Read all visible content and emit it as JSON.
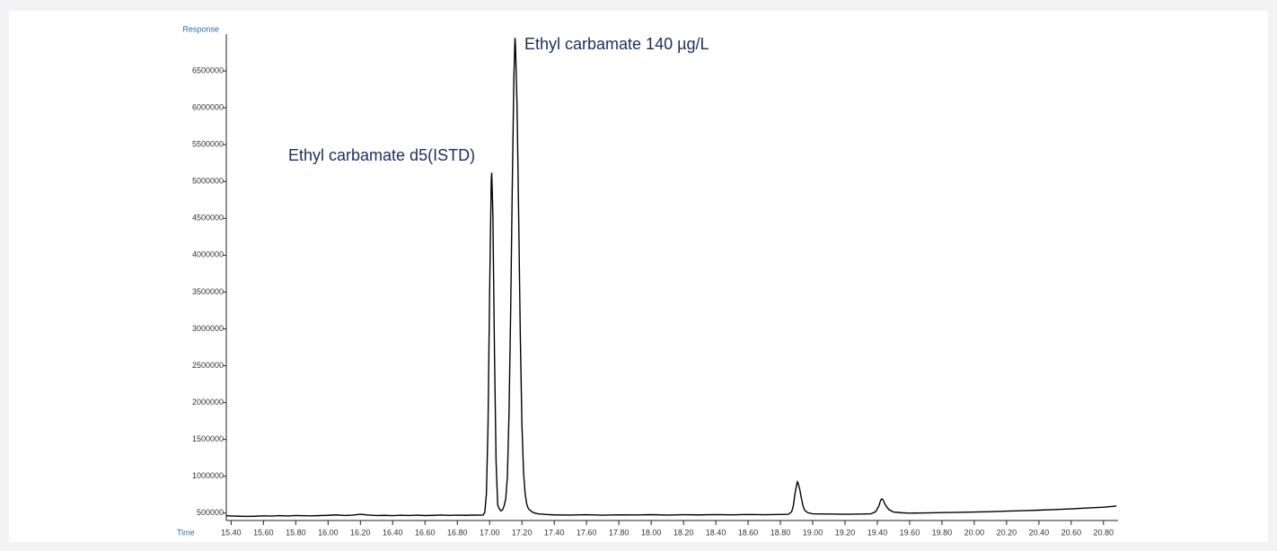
{
  "chart_data": {
    "type": "line",
    "y_label": "Response",
    "x_label": "Time",
    "annotations": [
      "Ethyl carbamate d5(ISTD)",
      "Ethyl carbamate 140 µg/L"
    ],
    "color": "#000000",
    "xlim": [
      15.37,
      20.89
    ],
    "ylim": [
      400000,
      7000000
    ],
    "xticks": [
      {
        "value": 15.4,
        "label": "15.40"
      },
      {
        "value": 15.6,
        "label": "15.60"
      },
      {
        "value": 15.8,
        "label": "15.80"
      },
      {
        "value": 16.0,
        "label": "16.00"
      },
      {
        "value": 16.2,
        "label": "16.20"
      },
      {
        "value": 16.4,
        "label": "16.40"
      },
      {
        "value": 16.6,
        "label": "16.60"
      },
      {
        "value": 16.8,
        "label": "16.80"
      },
      {
        "value": 17.0,
        "label": "17.00"
      },
      {
        "value": 17.2,
        "label": "17.20"
      },
      {
        "value": 17.4,
        "label": "17.40"
      },
      {
        "value": 17.6,
        "label": "17.60"
      },
      {
        "value": 17.8,
        "label": "17.80"
      },
      {
        "value": 18.0,
        "label": "18.00"
      },
      {
        "value": 18.2,
        "label": "18.20"
      },
      {
        "value": 18.4,
        "label": "18.40"
      },
      {
        "value": 18.6,
        "label": "18.60"
      },
      {
        "value": 18.8,
        "label": "18.80"
      },
      {
        "value": 19.0,
        "label": "19.00"
      },
      {
        "value": 19.2,
        "label": "19.20"
      },
      {
        "value": 19.4,
        "label": "19.40"
      },
      {
        "value": 19.6,
        "label": "19.60"
      },
      {
        "value": 19.8,
        "label": "19.80"
      },
      {
        "value": 20.0,
        "label": "20.00"
      },
      {
        "value": 20.2,
        "label": "20.20"
      },
      {
        "value": 20.4,
        "label": "20.40"
      },
      {
        "value": 20.6,
        "label": "20.60"
      },
      {
        "value": 20.8,
        "label": "20.80"
      }
    ],
    "yticks": [
      500000,
      1000000,
      1500000,
      2000000,
      2500000,
      3000000,
      3500000,
      4000000,
      4500000,
      5000000,
      5500000,
      6000000,
      6500000
    ],
    "x": [
      15.37,
      15.4,
      15.45,
      15.5,
      15.55,
      15.6,
      15.65,
      15.7,
      15.75,
      15.8,
      15.85,
      15.9,
      15.95,
      16.0,
      16.05,
      16.1,
      16.15,
      16.2,
      16.25,
      16.3,
      16.35,
      16.4,
      16.45,
      16.5,
      16.55,
      16.6,
      16.65,
      16.7,
      16.75,
      16.8,
      16.85,
      16.9,
      16.95,
      16.96,
      16.97,
      16.98,
      16.99,
      17.0,
      17.01,
      17.013,
      17.02,
      17.03,
      17.04,
      17.05,
      17.06,
      17.07,
      17.08,
      17.09,
      17.1,
      17.11,
      17.12,
      17.13,
      17.14,
      17.15,
      17.157,
      17.16,
      17.17,
      17.18,
      17.19,
      17.2,
      17.21,
      17.22,
      17.23,
      17.24,
      17.26,
      17.28,
      17.3,
      17.35,
      17.4,
      17.5,
      17.6,
      17.7,
      17.8,
      17.9,
      18.0,
      18.1,
      18.2,
      18.3,
      18.4,
      18.5,
      18.6,
      18.7,
      18.8,
      18.85,
      18.87,
      18.88,
      18.89,
      18.9,
      18.905,
      18.91,
      18.92,
      18.93,
      18.94,
      18.95,
      18.97,
      19.0,
      19.1,
      19.2,
      19.3,
      19.36,
      19.39,
      19.41,
      19.42,
      19.427,
      19.435,
      19.45,
      19.47,
      19.5,
      19.55,
      19.6,
      19.7,
      19.8,
      19.9,
      20.0,
      20.1,
      20.2,
      20.3,
      20.4,
      20.5,
      20.6,
      20.7,
      20.8,
      20.88
    ],
    "values": [
      465000,
      462000,
      458000,
      455000,
      458000,
      463000,
      460000,
      466000,
      462000,
      468000,
      465000,
      463000,
      467000,
      470000,
      476000,
      468000,
      472000,
      485000,
      474000,
      468000,
      470000,
      466000,
      471000,
      468000,
      472000,
      467000,
      470000,
      474000,
      469000,
      472000,
      470000,
      473000,
      472000,
      473600,
      511400,
      758000,
      1675000,
      3490000,
      5013000,
      5120000,
      4570000,
      2690000,
      1194000,
      611000,
      560000,
      530000,
      545000,
      600000,
      700000,
      1000000,
      1850000,
      3200000,
      4900000,
      6400000,
      6950000,
      6850000,
      6000000,
      4500000,
      2900000,
      1700000,
      1050000,
      760000,
      620000,
      560000,
      520000,
      500000,
      490000,
      482000,
      476000,
      474000,
      478000,
      472000,
      477000,
      475000,
      479000,
      474000,
      478000,
      476000,
      480000,
      477000,
      481000,
      478000,
      482000,
      484000,
      520000,
      600000,
      760000,
      880000,
      924000,
      905000,
      820000,
      700000,
      600000,
      540000,
      505000,
      490000,
      487000,
      485000,
      488000,
      490000,
      520000,
      600000,
      670000,
      694000,
      680000,
      610000,
      550000,
      515000,
      505000,
      500000,
      503000,
      507000,
      510000,
      515000,
      520000,
      527000,
      533000,
      540000,
      548000,
      558000,
      570000,
      580000,
      595000
    ]
  }
}
